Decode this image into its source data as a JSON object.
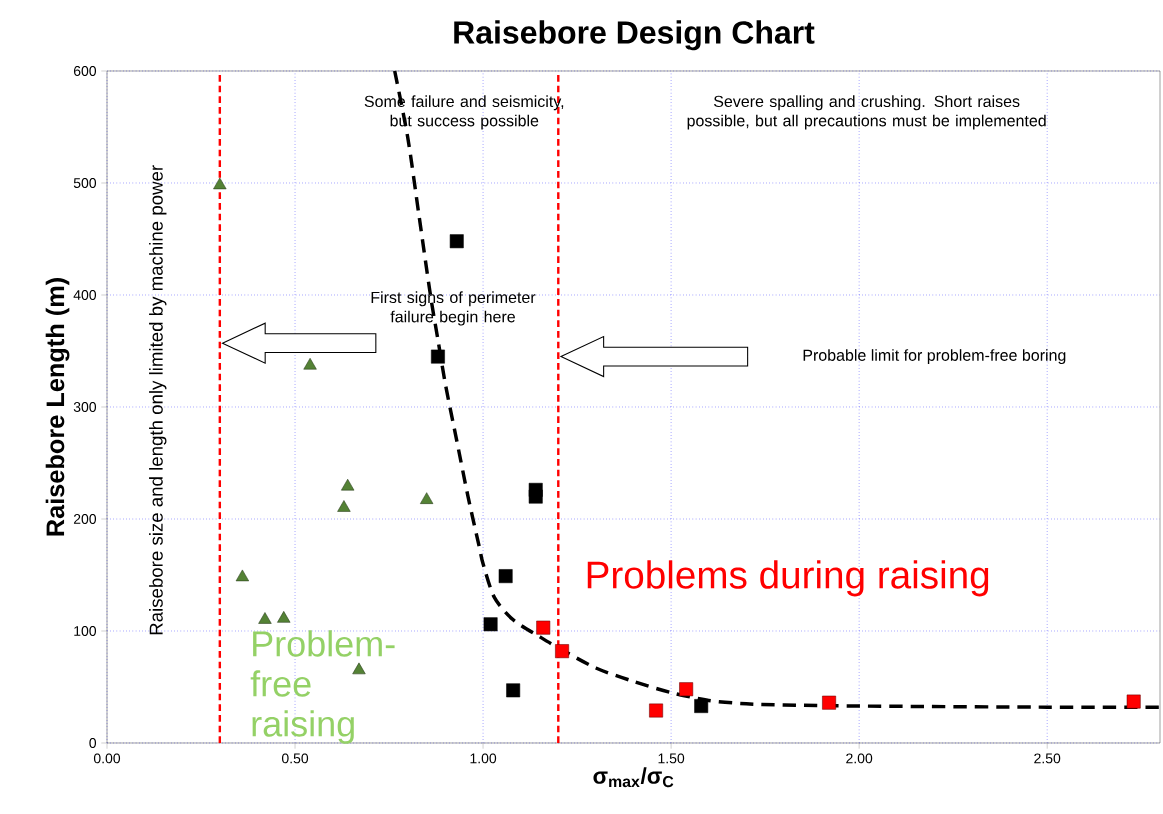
{
  "chart_data": {
    "type": "scatter",
    "title": "Raisebore Design Chart",
    "xlabel": "σ$_{max}$/σ$_{C}$",
    "ylabel": "Raisebore Length (m)",
    "xlim": [
      0,
      2.8
    ],
    "ylim": [
      0,
      600
    ],
    "xticks": [
      {
        "value": 0,
        "label": "0.00"
      },
      {
        "value": 0.5,
        "label": "0.50"
      },
      {
        "value": 1,
        "label": "1.00"
      },
      {
        "value": 1.5,
        "label": "1.50"
      },
      {
        "value": 2,
        "label": "2.00"
      },
      {
        "value": 2.5,
        "label": "2.50"
      }
    ],
    "yticks": [
      0,
      100,
      200,
      300,
      400,
      500,
      600
    ],
    "grid": true,
    "series": [
      {
        "marker": "triangle",
        "color": "#548235",
        "x": [
          0.3,
          0.54,
          0.36,
          0.42,
          0.47,
          0.63,
          0.64,
          0.85,
          0.67
        ],
        "values": [
          498,
          337,
          148,
          110,
          111,
          210,
          229,
          217,
          65
        ]
      },
      {
        "marker": "square",
        "color": "#000000",
        "x": [
          0.93,
          0.88,
          1.14,
          1.14,
          1.06,
          1.02,
          1.08,
          1.58
        ],
        "values": [
          448,
          345,
          226,
          220,
          149,
          106,
          47,
          33
        ]
      },
      {
        "marker": "square",
        "color": "#ff0000",
        "x": [
          1.16,
          1.21,
          1.46,
          1.54,
          1.92,
          2.73
        ],
        "values": [
          103,
          82,
          29,
          48,
          36,
          37
        ]
      },
      {
        "type": "line",
        "marker": "none",
        "line_style": "dashed",
        "color": "#000000",
        "x": [
          0.765,
          0.8,
          0.83,
          0.86,
          0.88,
          0.9,
          0.93,
          0.96,
          0.99,
          1.0,
          1.03,
          1.08,
          1.15,
          1.2,
          1.3,
          1.4,
          1.5,
          1.6,
          1.7,
          1.8,
          2.0,
          2.5,
          2.8
        ],
        "values": [
          600,
          540,
          470,
          400,
          360,
          320,
          270,
          220,
          175,
          160,
          130,
          110,
          95,
          85,
          67,
          55,
          45,
          38,
          35,
          34,
          33,
          32,
          32
        ]
      }
    ],
    "ref_lines": [
      {
        "axis": "x",
        "value": 0.3,
        "color": "#ff0000",
        "line_style": "dashed"
      },
      {
        "axis": "x",
        "value": 1.2,
        "color": "#ff0000",
        "line_style": "dashed"
      }
    ],
    "annotations": [
      "Some failure and seismicity, but success possible",
      "Severe spalling and crushing. Short raises possible, but all precautions must be implemented",
      "First signs of perimeter failure begin here",
      "Probable limit for problem-free boring",
      "Problems during raising",
      "Problem-free raising",
      "Raisebore size and length only limited by machine power"
    ]
  }
}
